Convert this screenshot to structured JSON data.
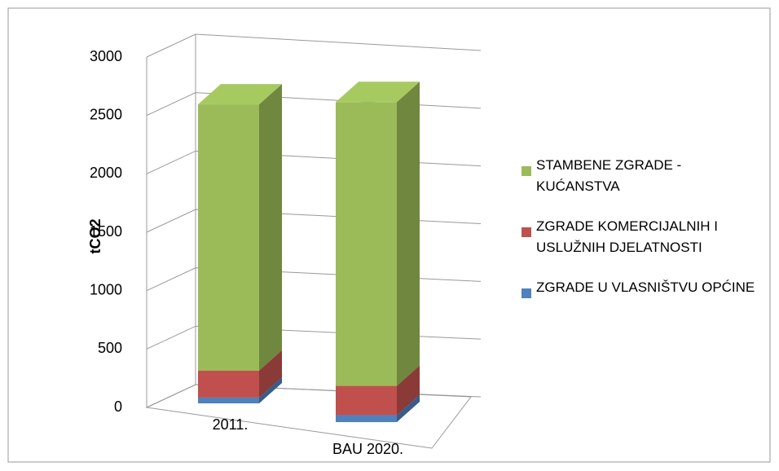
{
  "chart_data": {
    "type": "bar3d_stacked",
    "y_label": "tCO2",
    "categories": [
      "2011.",
      "BAU 2020."
    ],
    "series": [
      {
        "name": "ZGRADE U VLASNIŠTVU OPĆINE",
        "color": "#4f81bd",
        "values": [
          50,
          60
        ]
      },
      {
        "name": "ZGRADE KOMERCIJALNIH I USLUŽNIH DJELATNOSTI",
        "color": "#c0504d",
        "values": [
          230,
          250
        ]
      },
      {
        "name": "STAMBENE ZGRADE - KUĆANSTVA",
        "color": "#9bbb59",
        "values": [
          2280,
          2430
        ]
      }
    ],
    "ylim": [
      0,
      3000
    ],
    "yticks": [
      0,
      500,
      1000,
      1500,
      2000,
      2500,
      3000
    ],
    "grid": true
  }
}
